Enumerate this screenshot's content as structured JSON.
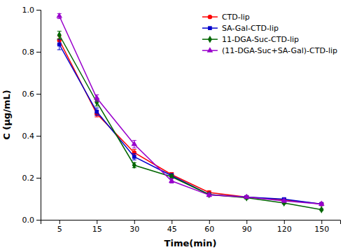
{
  "chart_data": {
    "type": "line",
    "x_label": "Time(min)",
    "y_label": "C (μg/mL)",
    "categories": [
      "5",
      "15",
      "30",
      "45",
      "60",
      "90",
      "120",
      "150"
    ],
    "series": [
      {
        "name": "CTD-lip",
        "color": "#FF0000",
        "marker": "circle",
        "line_style": "solid",
        "values": [
          0.855,
          0.505,
          0.32,
          0.215,
          0.13,
          0.108,
          0.095,
          0.075
        ],
        "errors": [
          0.02,
          0.015,
          0.015,
          0.01,
          0.008,
          0.006,
          0.006,
          0.005
        ]
      },
      {
        "name": "SA-Gal-CTD-lip",
        "color": "#0000CC",
        "marker": "square",
        "line_style": "solid",
        "values": [
          0.835,
          0.515,
          0.3,
          0.21,
          0.12,
          0.108,
          0.098,
          0.075
        ],
        "errors": [
          0.025,
          0.018,
          0.015,
          0.01,
          0.008,
          0.007,
          0.006,
          0.005
        ]
      },
      {
        "name": "11-DGA-Suc-CTD-lip",
        "color": "#006600",
        "marker": "diamond",
        "line_style": "solid",
        "values": [
          0.88,
          0.56,
          0.26,
          0.205,
          0.12,
          0.105,
          0.08,
          0.048
        ],
        "errors": [
          0.018,
          0.018,
          0.012,
          0.01,
          0.007,
          0.006,
          0.005,
          0.004
        ]
      },
      {
        "name": "(11-DGA-Suc+SA-Gal)-CTD-lip",
        "color": "#9900CC",
        "marker": "triangle",
        "line_style": "solid",
        "values": [
          0.97,
          0.58,
          0.36,
          0.185,
          0.118,
          0.108,
          0.09,
          0.075
        ],
        "errors": [
          0.012,
          0.015,
          0.018,
          0.01,
          0.008,
          0.006,
          0.006,
          0.005
        ]
      }
    ],
    "ylim": [
      0.0,
      1.0
    ],
    "yticks": [
      {
        "value": 0.0,
        "label": "0.0"
      },
      0.2,
      0.4,
      0.6,
      0.8,
      {
        "value": 1.0,
        "label": "1.0"
      }
    ],
    "grid": false,
    "legend": "upper right"
  }
}
